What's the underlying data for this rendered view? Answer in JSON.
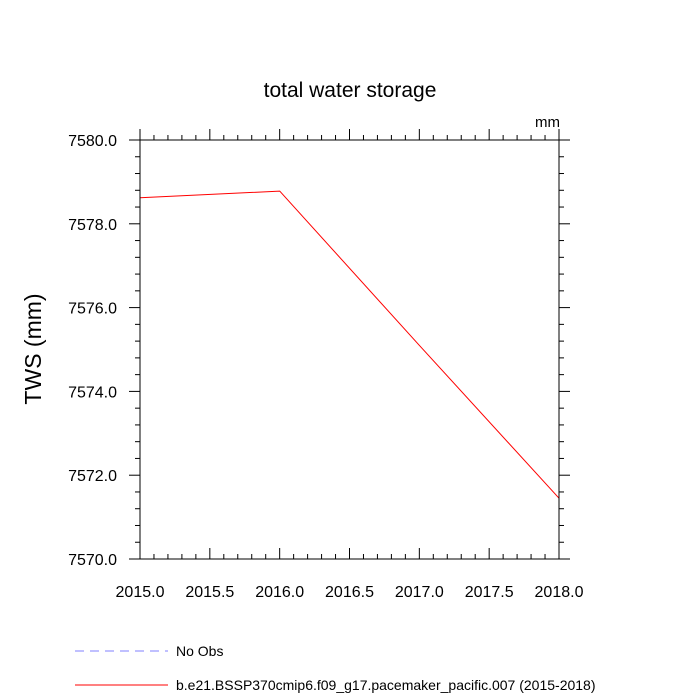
{
  "chart_data": {
    "type": "line",
    "title": "total water storage",
    "units_label": "mm",
    "xlabel": "",
    "ylabel": "TWS  (mm)",
    "xlim": [
      2015.0,
      2018.0
    ],
    "ylim": [
      7570.0,
      7580.0
    ],
    "x_ticks": [
      "2015.0",
      "2015.5",
      "2016.0",
      "2016.5",
      "2017.0",
      "2017.5",
      "2018.0"
    ],
    "y_ticks": [
      "7570.0",
      "7572.0",
      "7574.0",
      "7576.0",
      "7578.0",
      "7580.0"
    ],
    "x_tick_values": [
      2015.0,
      2015.5,
      2016.0,
      2016.5,
      2017.0,
      2017.5,
      2018.0
    ],
    "y_tick_values": [
      7570.0,
      7572.0,
      7574.0,
      7576.0,
      7578.0,
      7580.0
    ],
    "series": [
      {
        "name": "b.e21.BSSP370cmip6.f09_g17.pacemaker_pacific.007 (2015-2018)",
        "color": "#ff0000",
        "style": "solid",
        "x": [
          2015.0,
          2016.0,
          2017.0,
          2018.0
        ],
        "y": [
          7578.62,
          7578.78,
          7575.1,
          7571.45
        ]
      }
    ],
    "legend": [
      {
        "label": "No Obs",
        "color": "#8080ff",
        "style": "dashed"
      },
      {
        "label": "b.e21.BSSP370cmip6.f09_g17.pacemaker_pacific.007 (2015-2018)",
        "color": "#ff0000",
        "style": "solid"
      }
    ]
  }
}
